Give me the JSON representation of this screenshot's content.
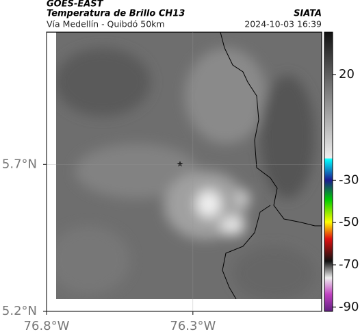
{
  "header": {
    "source": "GOES-EAST",
    "title": "Temperatura de Brillo CH13",
    "org": "SIATA",
    "subtitle": "Vía Medellín - Quibdó 50km",
    "datetime": "2024-10-03 16:39"
  },
  "map": {
    "xlim": [
      -76.8,
      -75.86
    ],
    "ylim": [
      5.2,
      6.15
    ],
    "xticks": [
      {
        "value": -76.8,
        "label": "76.8°W"
      },
      {
        "value": -76.3,
        "label": "76.3°W"
      }
    ],
    "yticks": [
      {
        "value": 5.2,
        "label": "5.2°N"
      },
      {
        "value": 5.7,
        "label": "5.7°N"
      }
    ]
  },
  "colorbar": {
    "lim": [
      40,
      -92
    ],
    "ticks": [
      20,
      -30,
      -50,
      -70,
      -90
    ]
  }
}
